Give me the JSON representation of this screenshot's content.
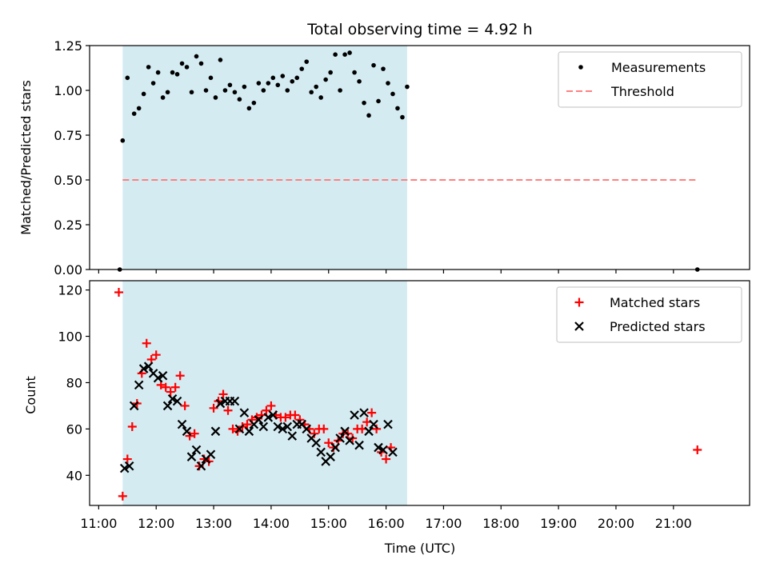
{
  "chart_data": [
    {
      "type": "scatter",
      "title": "Total observing time = 4.92 h",
      "xlabel": "",
      "ylabel": "Matched/Predicted stars",
      "ylim": [
        0,
        1.25
      ],
      "yticks": [
        "0.00",
        "0.25",
        "0.50",
        "0.75",
        "1.00",
        "1.25"
      ],
      "legend_position": "top-right",
      "grid": false,
      "shaded_interval": {
        "start": "11:25",
        "end": "16:22",
        "color": "#d4ebf2"
      },
      "series": [
        {
          "name": "Measurements",
          "kind": "scatter",
          "marker": "dot",
          "color": "#000000",
          "x": [
            "11:22",
            "11:25",
            "11:30",
            "11:37",
            "11:42",
            "11:47",
            "11:52",
            "11:57",
            "12:02",
            "12:07",
            "12:12",
            "12:17",
            "12:22",
            "12:27",
            "12:32",
            "12:37",
            "12:42",
            "12:47",
            "12:52",
            "12:57",
            "13:02",
            "13:07",
            "13:12",
            "13:17",
            "13:22",
            "13:27",
            "13:32",
            "13:37",
            "13:42",
            "13:47",
            "13:52",
            "13:57",
            "14:02",
            "14:07",
            "14:12",
            "14:17",
            "14:22",
            "14:27",
            "14:32",
            "14:37",
            "14:42",
            "14:47",
            "14:52",
            "14:57",
            "15:02",
            "15:07",
            "15:12",
            "15:17",
            "15:22",
            "15:27",
            "15:32",
            "15:37",
            "15:42",
            "15:47",
            "15:52",
            "15:57",
            "16:02",
            "16:07",
            "16:12",
            "16:17",
            "16:22",
            "21:25"
          ],
          "y": [
            0.0,
            0.72,
            1.07,
            0.87,
            0.9,
            0.98,
            1.13,
            1.04,
            1.1,
            0.96,
            0.99,
            1.1,
            1.09,
            1.15,
            1.13,
            0.99,
            1.19,
            1.15,
            1.0,
            1.07,
            0.96,
            1.17,
            1.0,
            1.03,
            0.99,
            0.95,
            1.02,
            0.9,
            0.93,
            1.04,
            1.0,
            1.04,
            1.07,
            1.03,
            1.08,
            1.0,
            1.05,
            1.07,
            1.12,
            1.16,
            0.99,
            1.02,
            0.96,
            1.06,
            1.1,
            1.2,
            1.0,
            1.2,
            1.21,
            1.1,
            1.05,
            0.93,
            0.86,
            1.14,
            0.94,
            1.12,
            1.04,
            0.98,
            0.9,
            0.85,
            1.02,
            0.0
          ]
        },
        {
          "name": "Threshold",
          "kind": "dashed-line",
          "color": "#ff8080",
          "x": [
            "11:25",
            "21:25"
          ],
          "y": [
            0.5,
            0.5
          ]
        }
      ]
    },
    {
      "type": "scatter",
      "title": "",
      "xlabel": "Time (UTC)",
      "ylabel": "Count",
      "ylim": [
        27,
        124
      ],
      "yticks": [
        "40",
        "60",
        "80",
        "100",
        "120"
      ],
      "xticks": [
        "11:00",
        "12:00",
        "13:00",
        "14:00",
        "15:00",
        "16:00",
        "17:00",
        "18:00",
        "19:00",
        "20:00",
        "21:00"
      ],
      "legend_position": "top-right",
      "grid": false,
      "shaded_interval": {
        "start": "11:25",
        "end": "16:22",
        "color": "#d4ebf2"
      },
      "series": [
        {
          "name": "Matched stars",
          "kind": "scatter",
          "marker": "plus",
          "color": "#ff0000",
          "x": [
            "11:21",
            "11:25",
            "11:30",
            "11:35",
            "11:40",
            "11:45",
            "11:50",
            "11:55",
            "12:00",
            "12:05",
            "12:10",
            "12:15",
            "12:20",
            "12:25",
            "12:30",
            "12:35",
            "12:40",
            "12:45",
            "12:50",
            "12:55",
            "13:00",
            "13:05",
            "13:10",
            "13:15",
            "13:20",
            "13:25",
            "13:30",
            "13:35",
            "13:40",
            "13:45",
            "13:50",
            "13:55",
            "14:00",
            "14:05",
            "14:10",
            "14:15",
            "14:20",
            "14:25",
            "14:30",
            "14:35",
            "14:40",
            "14:45",
            "14:50",
            "14:55",
            "15:00",
            "15:05",
            "15:10",
            "15:15",
            "15:20",
            "15:25",
            "15:30",
            "15:35",
            "15:40",
            "15:45",
            "15:50",
            "15:55",
            "16:00",
            "16:05",
            "16:10",
            "16:15",
            "16:20",
            "21:25"
          ],
          "y": [
            119,
            31,
            47,
            61,
            71,
            84,
            97,
            90,
            92,
            79,
            78,
            76,
            78,
            83,
            70,
            57,
            58,
            44,
            47,
            46,
            69,
            72,
            75,
            68,
            60,
            59,
            61,
            62,
            64,
            65,
            66,
            68,
            70,
            66,
            65,
            65,
            66,
            66,
            64,
            62,
            60,
            58,
            60,
            60,
            54,
            52,
            55,
            58,
            58,
            56,
            60,
            60,
            63,
            67,
            60,
            50,
            47,
            52,
            null,
            null,
            null,
            51
          ]
        },
        {
          "name": "Predicted stars",
          "kind": "scatter",
          "marker": "x",
          "color": "#000000",
          "x": [
            "11:27",
            "11:32",
            "11:37",
            "11:42",
            "11:47",
            "11:52",
            "11:57",
            "12:02",
            "12:07",
            "12:12",
            "12:17",
            "12:22",
            "12:27",
            "12:32",
            "12:37",
            "12:42",
            "12:47",
            "12:52",
            "12:57",
            "13:02",
            "13:07",
            "13:12",
            "13:17",
            "13:22",
            "13:27",
            "13:32",
            "13:37",
            "13:42",
            "13:47",
            "13:52",
            "13:57",
            "14:02",
            "14:07",
            "14:12",
            "14:17",
            "14:22",
            "14:27",
            "14:32",
            "14:37",
            "14:42",
            "14:47",
            "14:52",
            "14:57",
            "15:02",
            "15:07",
            "15:12",
            "15:17",
            "15:22",
            "15:27",
            "15:32",
            "15:37",
            "15:42",
            "15:47",
            "15:52",
            "15:57",
            "16:02",
            "16:07",
            "16:12",
            "16:17",
            "16:22"
          ],
          "y": [
            43,
            44,
            70,
            79,
            86,
            87,
            84,
            82,
            83,
            70,
            73,
            72,
            62,
            59,
            48,
            51,
            44,
            47,
            49,
            59,
            71,
            72,
            72,
            72,
            60,
            67,
            59,
            62,
            64,
            61,
            65,
            66,
            61,
            60,
            61,
            57,
            62,
            62,
            60,
            56,
            54,
            50,
            46,
            48,
            52,
            56,
            59,
            55,
            66,
            53,
            67,
            59,
            62,
            52,
            51,
            62,
            50,
            null,
            null,
            null
          ]
        }
      ]
    }
  ]
}
